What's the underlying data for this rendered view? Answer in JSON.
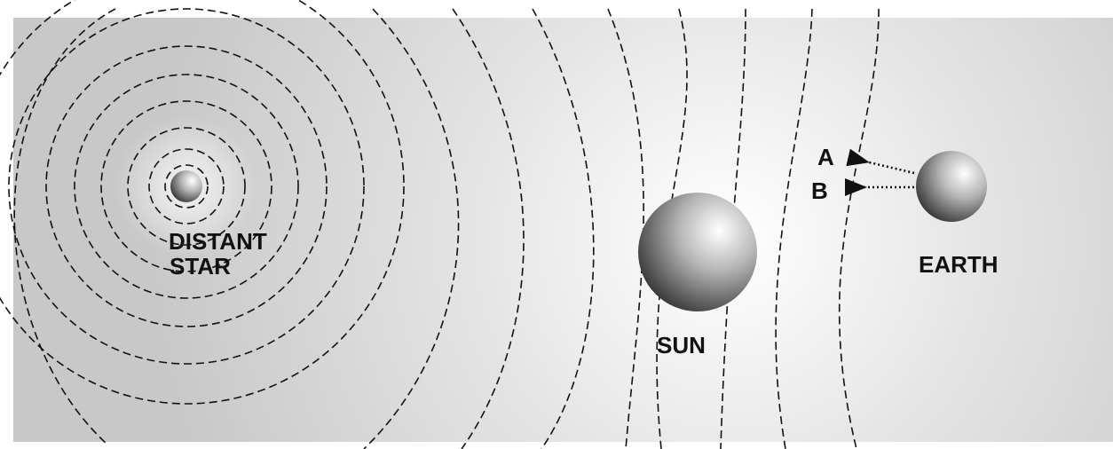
{
  "nodes": [
    {
      "label": [
        "DISTANT",
        "STAR"
      ]
    },
    {
      "label": [
        "SUN"
      ]
    },
    {
      "label": [
        "EARTH"
      ]
    }
  ],
  "points": [
    {
      "label": "A"
    },
    {
      "label": "B"
    }
  ]
}
